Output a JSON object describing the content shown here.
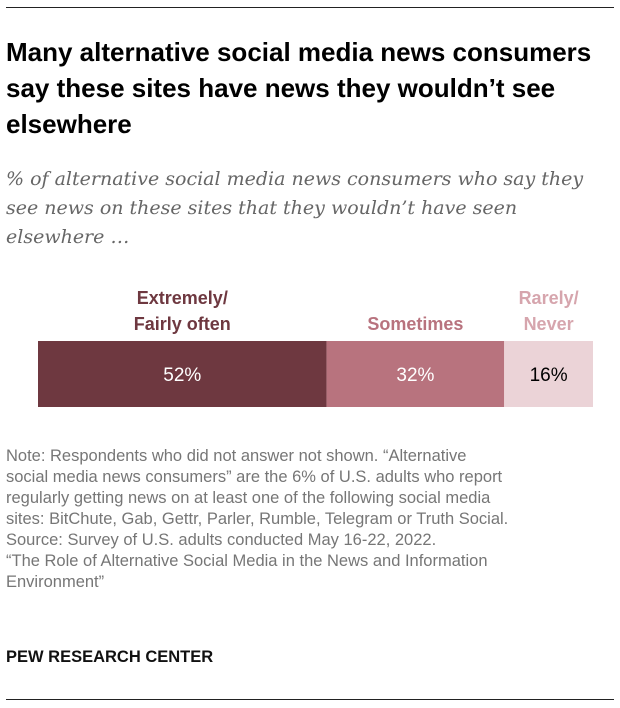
{
  "title": "Many alternative social media news consumers say these sites have news they wouldn’t see elsewhere",
  "subtitle": "% of alternative social media news consumers who say they see news on these sites that they wouldn’t have seen elsewhere …",
  "chart_data": {
    "type": "bar",
    "orientation": "horizontal-stacked",
    "series": [
      {
        "name": "Extremely/ Fairly often",
        "label_lines": [
          "Extremely/",
          "Fairly often"
        ],
        "value": 52,
        "value_label": "52%",
        "color": "#6e3840",
        "label_color": "#6e3840",
        "value_text_color": "#ffffff"
      },
      {
        "name": "Sometimes",
        "label_lines": [
          "Sometimes"
        ],
        "value": 32,
        "value_label": "32%",
        "color": "#b8737e",
        "label_color": "#b8737e",
        "value_text_color": "#ffffff"
      },
      {
        "name": "Rarely/ Never",
        "label_lines": [
          "Rarely/",
          "Never"
        ],
        "value": 16,
        "value_label": "16%",
        "color": "#ebd3d7",
        "label_color": "#d6a5ad",
        "value_text_color": "#000000"
      }
    ]
  },
  "notes": {
    "lines": [
      "Note: Respondents who did not answer not shown. “Alternative",
      "social media news consumers” are the 6% of U.S. adults who report",
      "regularly getting news on at least one of the following social media",
      "sites: BitChute, Gab, Gettr, Parler, Rumble, Telegram or Truth Social.",
      "Source: Survey of U.S. adults conducted May 16-22, 2022.",
      "“The Role of Alternative Social Media in the News and Information",
      "Environment”"
    ]
  },
  "source_org": "PEW RESEARCH CENTER"
}
